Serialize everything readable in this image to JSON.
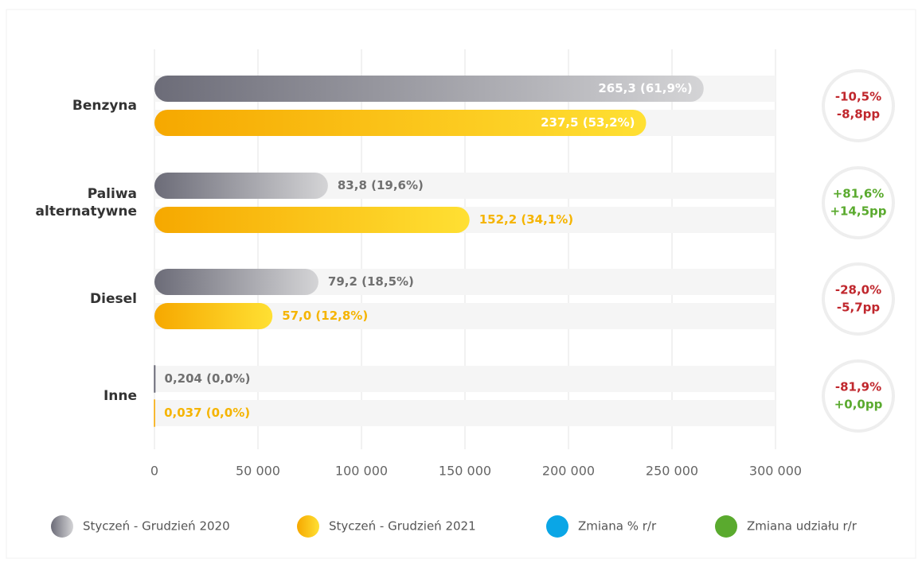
{
  "chart_data": {
    "type": "hbar",
    "categories": [
      "Benzyna",
      "Paliwa alternatywne",
      "Diesel",
      "Inne"
    ],
    "series": [
      {
        "name": "Styczeń - Grudzień 2020",
        "color": "#6c6c78",
        "values": [
          265300,
          83800,
          79200,
          204
        ],
        "value_labels": [
          "265,3 (61,9%)",
          "83,8 (19,6%)",
          "79,2 (18,5%)",
          "0,204 (0,0%)"
        ]
      },
      {
        "name": "Styczeń - Grudzień 2021",
        "color": "#f6a800",
        "values": [
          237500,
          152200,
          57000,
          37
        ],
        "value_labels": [
          "237,5 (53,2%)",
          "152,2 (34,1%)",
          "57,0 (12,8%)",
          "0,037 (0,0%)"
        ]
      }
    ],
    "changes": [
      {
        "pct": "-10,5%",
        "pct_color": "#c0272d",
        "share": "-8,8pp",
        "share_color": "#c0272d"
      },
      {
        "pct": "+81,6%",
        "pct_color": "#5aaa2e",
        "share": "+14,5pp",
        "share_color": "#5aaa2e"
      },
      {
        "pct": "-28,0%",
        "pct_color": "#c0272d",
        "share": "-5,7pp",
        "share_color": "#c0272d"
      },
      {
        "pct": "-81,9%",
        "pct_color": "#c0272d",
        "share": "+0,0pp",
        "share_color": "#5aaa2e"
      }
    ],
    "legend_extra": [
      {
        "name": "Zmiana % r/r",
        "color": "#0aa6e6"
      },
      {
        "name": "Zmiana udziału r/r",
        "color": "#5aaa2e"
      }
    ],
    "xlim": [
      0,
      300000
    ],
    "xticks": [
      0,
      {
        "value": 50000,
        "label": "50 000"
      },
      {
        "value": 100000,
        "label": "100 000"
      },
      {
        "value": 150000,
        "label": "150 000"
      },
      {
        "value": 200000,
        "label": "200 000"
      },
      {
        "value": 250000,
        "label": "250 000"
      },
      {
        "value": 300000,
        "label": "300 000"
      }
    ],
    "grid": true
  }
}
